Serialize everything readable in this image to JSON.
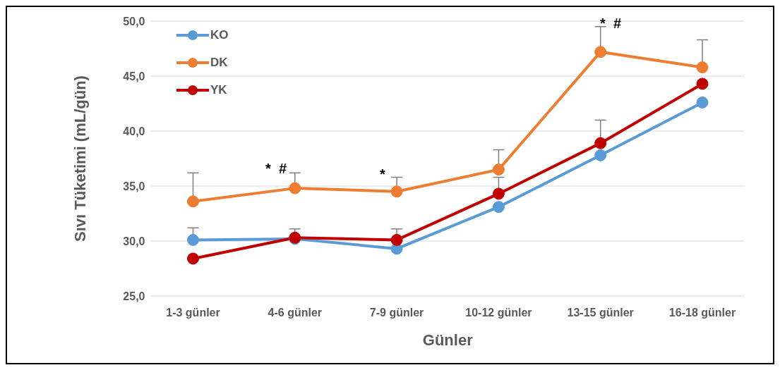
{
  "chart_data": {
    "type": "line",
    "xlabel": "Günler",
    "ylabel": "Sıvı Tüketimi (mL/gün)",
    "categories": [
      "1-3 günler",
      "4-6 günler",
      "7-9 günler",
      "10-12 günler",
      "13-15 günler",
      "16-18 günler"
    ],
    "series": [
      {
        "name": "KO",
        "color": "#5b9bd5",
        "values": [
          30.1,
          30.2,
          29.3,
          33.1,
          37.8,
          42.6
        ],
        "errors": [
          [
            30.1,
            31.2
          ],
          [
            30.2,
            31.1
          ],
          null,
          null,
          null,
          null
        ]
      },
      {
        "name": "DK",
        "color": "#ed7d31",
        "values": [
          33.6,
          34.8,
          34.5,
          36.5,
          47.2,
          45.8
        ],
        "errors": [
          [
            33.6,
            36.2
          ],
          [
            34.8,
            36.2
          ],
          [
            34.5,
            35.8
          ],
          [
            36.5,
            38.3
          ],
          [
            47.2,
            49.5
          ],
          [
            45.8,
            48.3
          ]
        ]
      },
      {
        "name": "YK",
        "color": "#c00000",
        "values": [
          28.4,
          30.3,
          30.1,
          34.3,
          38.9,
          44.3
        ],
        "errors": [
          null,
          null,
          [
            30.1,
            31.1
          ],
          [
            34.3,
            35.8
          ],
          [
            38.9,
            41.0
          ],
          null
        ]
      }
    ],
    "ylim": [
      25,
      50
    ],
    "yticks": [
      {
        "value": 25,
        "label": "25,0"
      },
      {
        "value": 30,
        "label": "30,0"
      },
      {
        "value": 35,
        "label": "35,0"
      },
      {
        "value": 40,
        "label": "40,0"
      },
      {
        "value": 45,
        "label": "45,0"
      },
      {
        "value": 50,
        "label": "50,0"
      }
    ],
    "annotations": [
      "*  #",
      "*",
      "*  #"
    ],
    "grid": "y",
    "legend": "top left",
    "marker": "circle",
    "line_style": "solid"
  }
}
